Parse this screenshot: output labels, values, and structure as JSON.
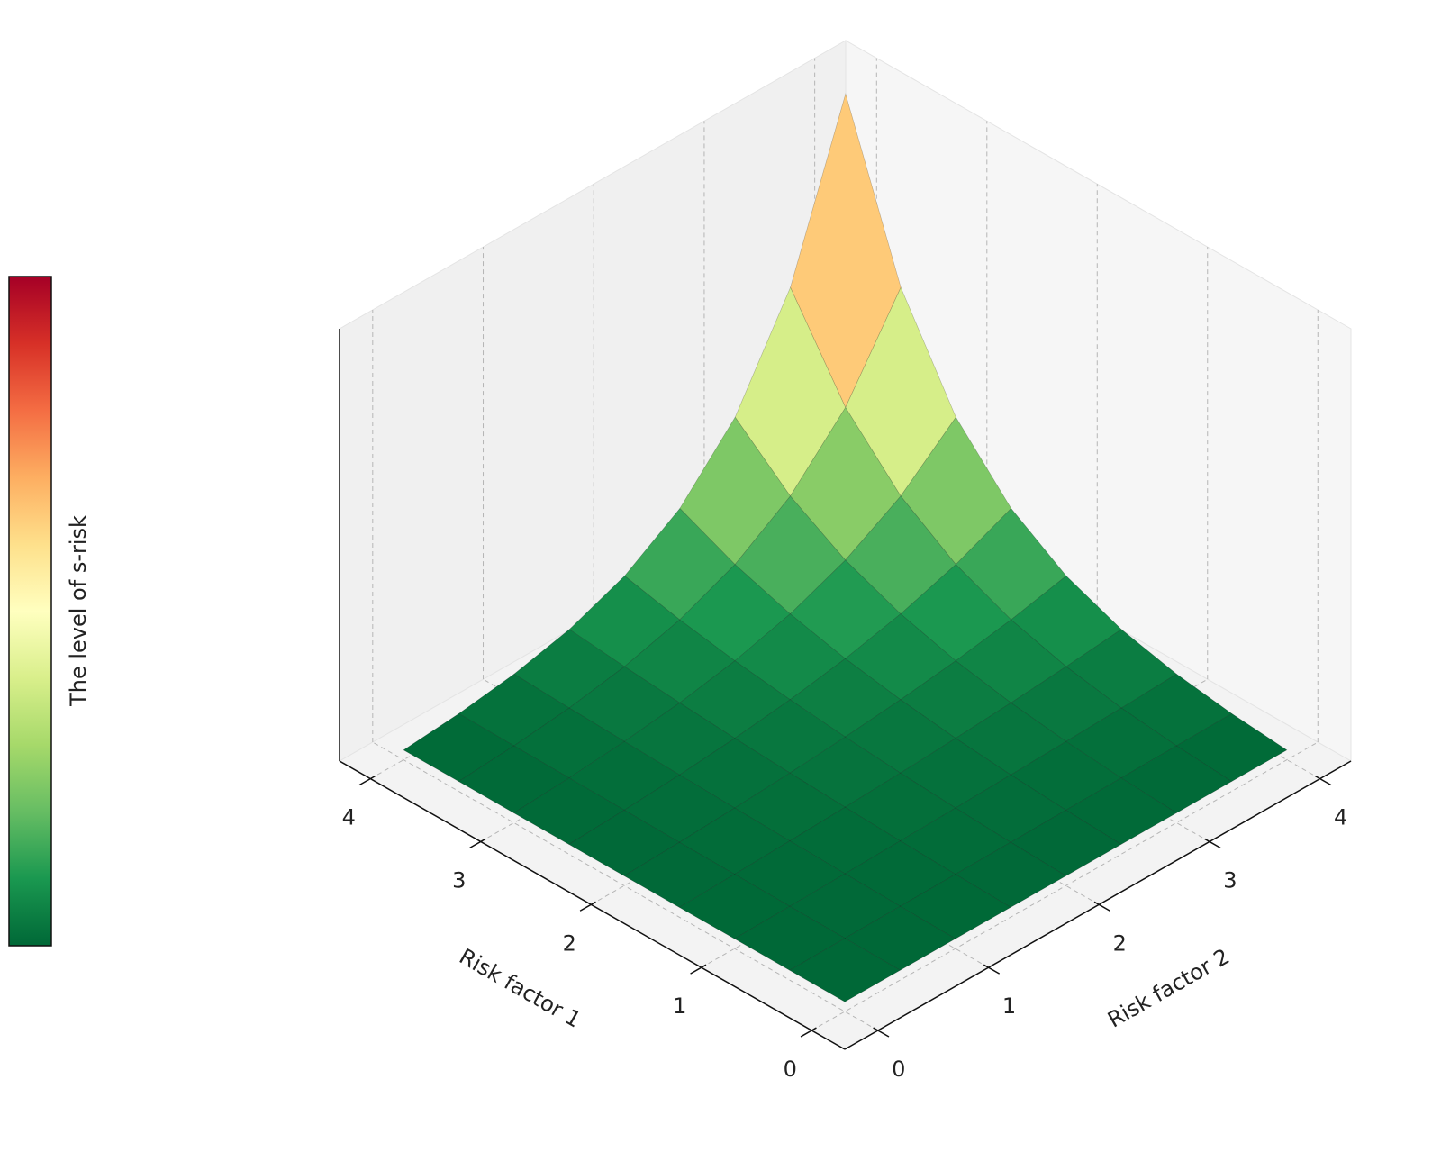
{
  "chart_data": {
    "type": "surface",
    "xlabel": "Risk factor 1",
    "ylabel": "Risk factor 2",
    "colorbar_label": "The level of s-risk",
    "x": [
      0,
      0.5,
      1,
      1.5,
      2,
      2.5,
      3,
      3.5,
      4
    ],
    "y": [
      0,
      0.5,
      1,
      1.5,
      2,
      2.5,
      3,
      3.5,
      4
    ],
    "z": [
      [
        0,
        0,
        0,
        0,
        0,
        0,
        0,
        0,
        0
      ],
      [
        0,
        0.06,
        0.13,
        0.21,
        0.28,
        0.37,
        0.46,
        0.55,
        0.65
      ],
      [
        0,
        0.13,
        0.28,
        0.46,
        0.65,
        0.87,
        1.12,
        1.4,
        1.72
      ],
      [
        0,
        0.21,
        0.46,
        0.76,
        1.12,
        1.55,
        2.08,
        2.72,
        3.48
      ],
      [
        0,
        0.28,
        0.65,
        1.12,
        1.72,
        2.49,
        3.48,
        4.75,
        6.39
      ],
      [
        0,
        0.37,
        0.87,
        1.55,
        2.49,
        3.77,
        5.52,
        7.91,
        11.18
      ],
      [
        0,
        0.46,
        1.12,
        2.08,
        3.48,
        5.52,
        8.49,
        12.8,
        19.09
      ],
      [
        0,
        0.55,
        1.4,
        2.72,
        4.75,
        7.91,
        12.8,
        20.38,
        32.12
      ],
      [
        0,
        0.65,
        1.72,
        3.48,
        6.39,
        11.18,
        19.09,
        32.12,
        53.6
      ]
    ],
    "xlim": [
      -0.3,
      4.28
    ],
    "ylim": [
      -0.3,
      4.28
    ],
    "zlim": [
      -1.3,
      56
    ],
    "xticks": [
      0,
      1,
      2,
      3,
      4
    ],
    "yticks": [
      0,
      1,
      2,
      3,
      4
    ],
    "grid": true,
    "colormap": [
      "#006837",
      "#1a9850",
      "#66bd63",
      "#a6d96a",
      "#d9ef8b",
      "#ffffbf",
      "#fee08b",
      "#fdae61",
      "#f46d43",
      "#d73027",
      "#a50026"
    ]
  }
}
